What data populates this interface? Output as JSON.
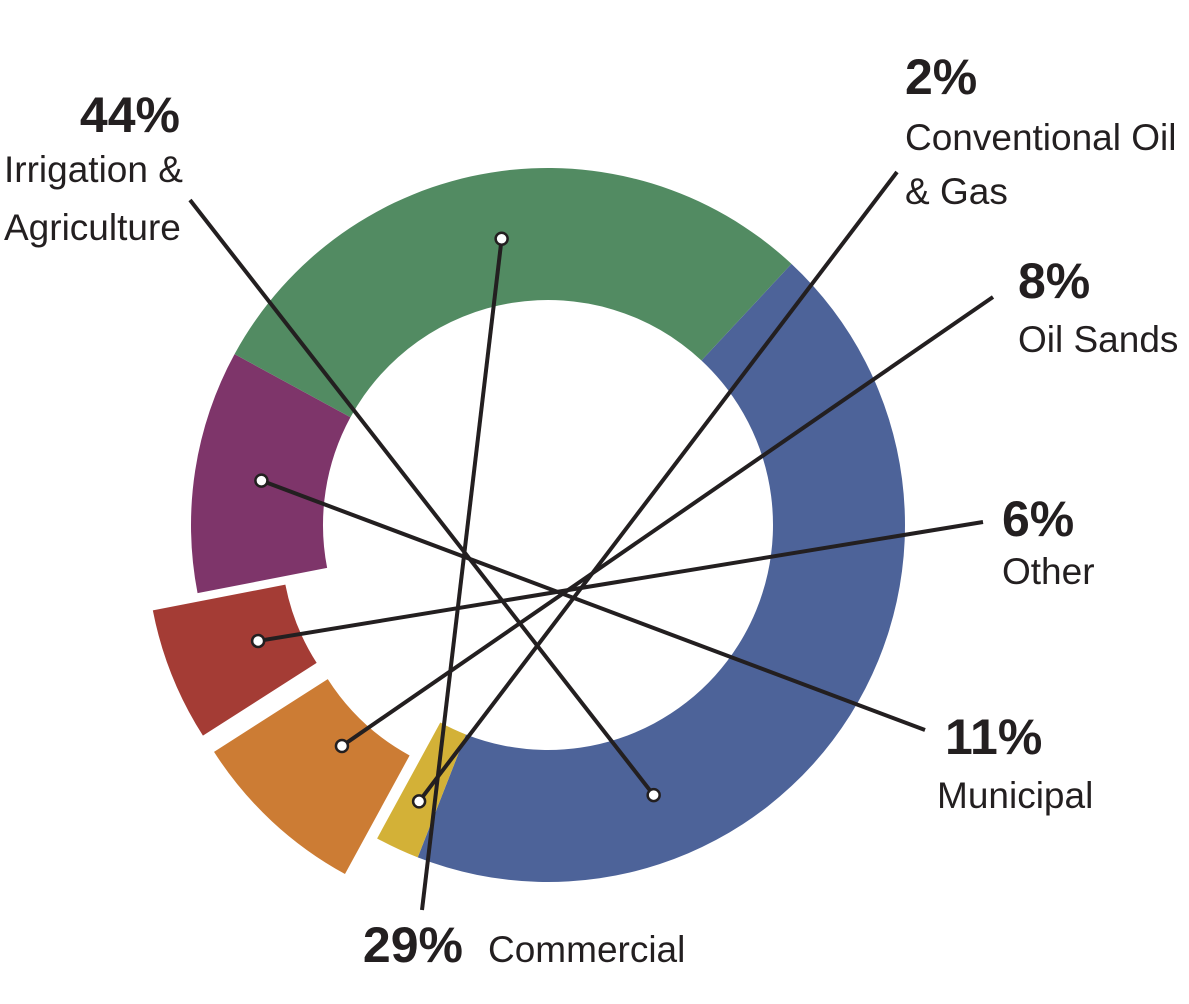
{
  "chart_data": {
    "type": "pie",
    "variant": "donut",
    "title": "",
    "legend": "none",
    "slices": [
      {
        "label": "Irrigation & Agriculture",
        "label_lines": [
          "Irrigation &",
          "Agriculture"
        ],
        "value": 44,
        "value_label": "44%",
        "color": "#4d6399",
        "exploded": false
      },
      {
        "label": "Conventional Oil & Gas",
        "label_lines": [
          "Conventional Oil",
          "& Gas"
        ],
        "value": 2,
        "value_label": "2%",
        "color": "#d3b137",
        "exploded": false
      },
      {
        "label": "Oil Sands",
        "label_lines": [
          "Oil Sands"
        ],
        "value": 8,
        "value_label": "8%",
        "color": "#cc7c34",
        "exploded": true
      },
      {
        "label": "Other",
        "label_lines": [
          "Other"
        ],
        "value": 6,
        "value_label": "6%",
        "color": "#a43c35",
        "exploded": true
      },
      {
        "label": "Municipal",
        "label_lines": [
          "Municipal"
        ],
        "value": 11,
        "value_label": "11%",
        "color": "#7e356a",
        "exploded": false
      },
      {
        "label": "Commercial",
        "label_lines": [
          "Commercial"
        ],
        "value": 29,
        "value_label": "29%",
        "color": "#528b62",
        "exploded": false
      }
    ]
  }
}
